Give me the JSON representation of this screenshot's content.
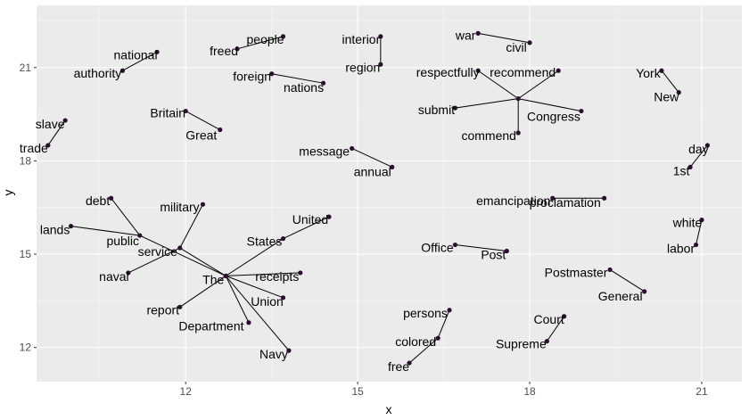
{
  "chart_data": {
    "type": "scatter",
    "title": "",
    "xlabel": "x",
    "ylabel": "y",
    "xlim": [
      9.4,
      21.7
    ],
    "ylim": [
      10.9,
      23.0
    ],
    "x_ticks": [
      12,
      15,
      18,
      21
    ],
    "y_ticks": [
      12,
      15,
      18,
      21
    ],
    "x_tick_labels": [
      "12",
      "15",
      "18",
      "21"
    ],
    "y_tick_labels": [
      "12",
      "15",
      "18",
      "21"
    ],
    "grid": true,
    "legend": "none",
    "colors": {
      "panel": "#ebebeb",
      "grid_major": "#ffffff",
      "grid_minor": "#f5f5f5",
      "point": "#2a0f2e",
      "segment": "#000000",
      "text": "#000000",
      "tick_text": "#4d4d4d"
    },
    "points": [
      {
        "word": "people",
        "x": 13.7,
        "y": 22.0
      },
      {
        "word": "freed",
        "x": 12.9,
        "y": 21.6
      },
      {
        "word": "interior",
        "x": 15.4,
        "y": 22.0
      },
      {
        "word": "region",
        "x": 15.4,
        "y": 21.1
      },
      {
        "word": "war",
        "x": 17.1,
        "y": 22.1
      },
      {
        "word": "civil",
        "x": 18.0,
        "y": 21.8
      },
      {
        "word": "national",
        "x": 11.5,
        "y": 21.5
      },
      {
        "word": "authority",
        "x": 10.9,
        "y": 20.9
      },
      {
        "word": "foreign",
        "x": 13.5,
        "y": 20.8
      },
      {
        "word": "nations",
        "x": 14.4,
        "y": 20.5
      },
      {
        "word": "respectfully",
        "x": 17.1,
        "y": 20.9
      },
      {
        "word": "recommend",
        "x": 18.5,
        "y": 20.9
      },
      {
        "word": "submit",
        "x": 16.7,
        "y": 19.7
      },
      {
        "word": "Congress",
        "x": 18.9,
        "y": 19.6
      },
      {
        "word": "commend",
        "x": 17.8,
        "y": 18.9
      },
      {
        "word": "York",
        "x": 20.3,
        "y": 20.9
      },
      {
        "word": "New",
        "x": 20.6,
        "y": 20.2
      },
      {
        "word": "Britain",
        "x": 12.0,
        "y": 19.6
      },
      {
        "word": "Great",
        "x": 12.6,
        "y": 19.0
      },
      {
        "word": "slave",
        "x": 9.9,
        "y": 19.3
      },
      {
        "word": "trade",
        "x": 9.6,
        "y": 18.5
      },
      {
        "word": "message",
        "x": 14.9,
        "y": 18.4
      },
      {
        "word": "annual",
        "x": 15.6,
        "y": 17.8
      },
      {
        "word": "day",
        "x": 21.1,
        "y": 18.5
      },
      {
        "word": "1st",
        "x": 20.8,
        "y": 17.8
      },
      {
        "word": "debt",
        "x": 10.7,
        "y": 16.8
      },
      {
        "word": "military",
        "x": 12.3,
        "y": 16.6
      },
      {
        "word": "United",
        "x": 14.5,
        "y": 16.2
      },
      {
        "word": "lands",
        "x": 10.0,
        "y": 15.9
      },
      {
        "word": "public",
        "x": 11.2,
        "y": 15.6
      },
      {
        "word": "States",
        "x": 13.7,
        "y": 15.5
      },
      {
        "word": "service",
        "x": 11.9,
        "y": 15.2
      },
      {
        "word": "naval",
        "x": 11.0,
        "y": 14.4
      },
      {
        "word": "The",
        "x": 12.7,
        "y": 14.3
      },
      {
        "word": "receipts",
        "x": 14.0,
        "y": 14.4
      },
      {
        "word": "Union",
        "x": 13.7,
        "y": 13.6
      },
      {
        "word": "report",
        "x": 11.9,
        "y": 13.3
      },
      {
        "word": "Department",
        "x": 13.1,
        "y": 12.8
      },
      {
        "word": "Navy",
        "x": 13.8,
        "y": 11.9
      },
      {
        "word": "emancipation",
        "x": 18.4,
        "y": 16.8
      },
      {
        "word": "proclamation",
        "x": 19.3,
        "y": 16.8
      },
      {
        "word": "white",
        "x": 21.0,
        "y": 16.1
      },
      {
        "word": "labor",
        "x": 20.9,
        "y": 15.3
      },
      {
        "word": "Office",
        "x": 16.7,
        "y": 15.3
      },
      {
        "word": "Post",
        "x": 17.6,
        "y": 15.1
      },
      {
        "word": "Postmaster",
        "x": 19.4,
        "y": 14.5
      },
      {
        "word": "General",
        "x": 20.0,
        "y": 13.8
      },
      {
        "word": "persons",
        "x": 16.6,
        "y": 13.2
      },
      {
        "word": "colored",
        "x": 16.4,
        "y": 12.3
      },
      {
        "word": "free",
        "x": 15.9,
        "y": 11.5
      },
      {
        "word": "Court",
        "x": 18.6,
        "y": 13.0
      },
      {
        "word": "Supreme",
        "x": 18.3,
        "y": 12.2
      }
    ],
    "hubs": [
      {
        "x": 17.8,
        "y": 20.0
      },
      {
        "x": 12.7,
        "y": 14.3
      }
    ]
  }
}
